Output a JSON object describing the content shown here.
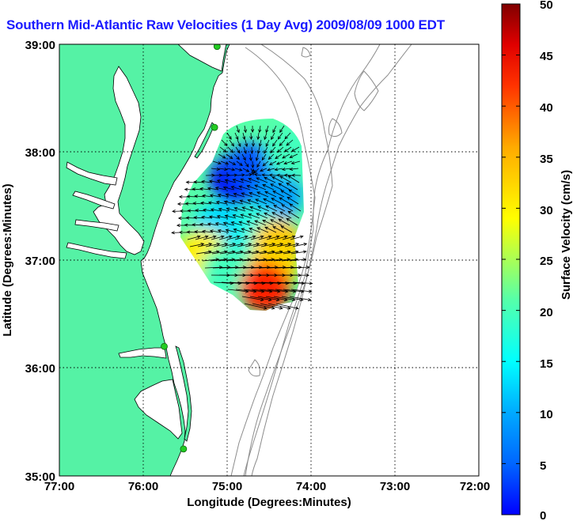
{
  "title": "Southern Mid-Atlantic Raw Velocities (1 Day Avg) 2009/08/09 1000 EDT",
  "axes": {
    "xlabel": "Longitude (Degrees:Minutes)",
    "ylabel": "Latitude (Degrees:Minutes)",
    "x_ticks": [
      "77:00",
      "76:00",
      "75:00",
      "74:00",
      "73:00",
      "72:00"
    ],
    "y_ticks": [
      "39:00",
      "38:00",
      "37:00",
      "36:00",
      "35:00"
    ],
    "xlim": [
      -77,
      -72
    ],
    "ylim": [
      35,
      39
    ],
    "grid": "dotted"
  },
  "colorbar": {
    "label": "Surface Velocity (cm/s)",
    "ticks": [
      "0",
      "5",
      "10",
      "15",
      "20",
      "25",
      "30",
      "35",
      "40",
      "45",
      "50"
    ],
    "range": [
      0,
      50
    ],
    "colormap": "jet"
  },
  "colors": {
    "land": "#55f2a5",
    "ocean": "#ffffff",
    "coast_outline": "#000000",
    "bathymetry": "#8c8c8c",
    "station": "#22cc22",
    "title": "#1a1aff"
  },
  "stations": [
    {
      "lon": -75.12,
      "lat": 38.98
    },
    {
      "lon": -75.15,
      "lat": 38.23
    },
    {
      "lon": -75.75,
      "lat": 36.2
    },
    {
      "lon": -75.52,
      "lat": 35.25
    }
  ],
  "chart_data": {
    "type": "heatmap",
    "title": "Southern Mid-Atlantic Raw Velocities (1 Day Avg) 2009/08/09 1000 EDT",
    "xlabel": "Longitude (Degrees:Minutes)",
    "ylabel": "Latitude (Degrees:Minutes)",
    "xlim": [
      -77,
      -72
    ],
    "ylim": [
      35,
      39
    ],
    "value_range_cm_s": [
      0,
      50
    ],
    "field_description": "surface current velocity vectors colored by speed",
    "zones": [
      {
        "lon": -74.9,
        "lat": 37.75,
        "speed": 6
      },
      {
        "lon": -74.7,
        "lat": 37.85,
        "speed": 10
      },
      {
        "lon": -74.4,
        "lat": 37.6,
        "speed": 14
      },
      {
        "lon": -75.1,
        "lat": 37.3,
        "speed": 17
      },
      {
        "lon": -74.6,
        "lat": 37.25,
        "speed": 20
      },
      {
        "lon": -75.3,
        "lat": 37.05,
        "speed": 32
      },
      {
        "lon": -74.4,
        "lat": 37.15,
        "speed": 34
      },
      {
        "lon": -75.0,
        "lat": 36.9,
        "speed": 22
      },
      {
        "lon": -74.45,
        "lat": 36.95,
        "speed": 33
      },
      {
        "lon": -74.55,
        "lat": 36.75,
        "speed": 42
      },
      {
        "lon": -74.25,
        "lat": 38.0,
        "speed": 22
      }
    ]
  }
}
